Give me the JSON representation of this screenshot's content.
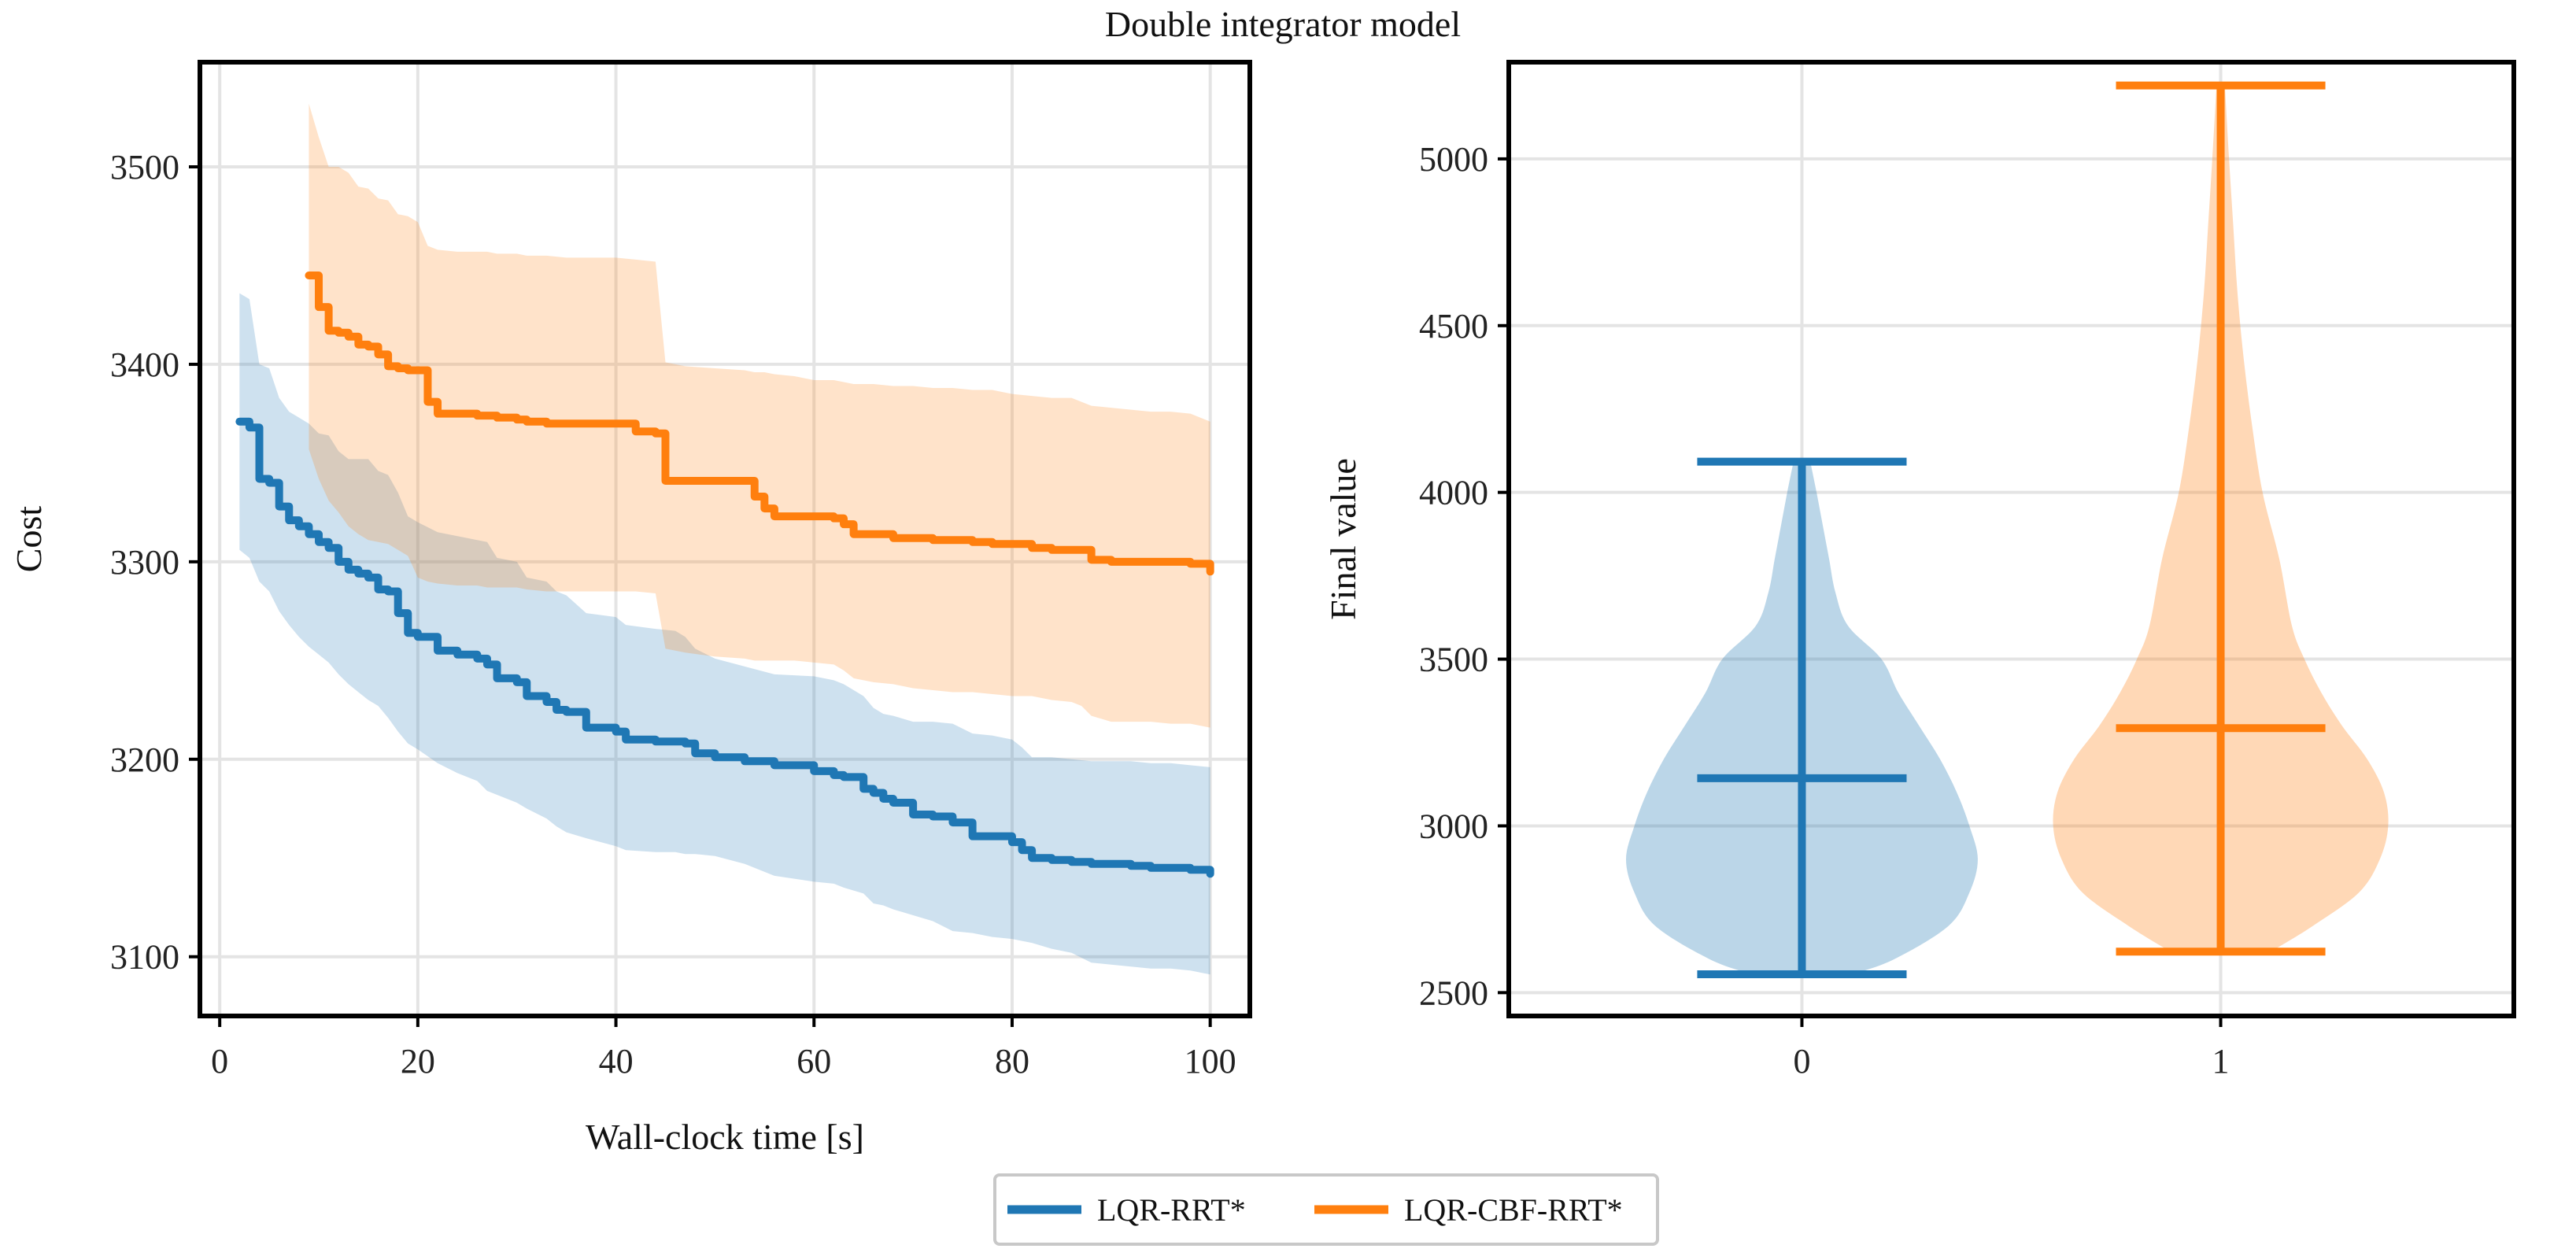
{
  "figure_title": "Double integrator model",
  "colors": {
    "blue": "#1f77b4",
    "orange": "#ff7f0e"
  },
  "legend": {
    "items": [
      {
        "label": "LQR-RRT*",
        "color": "#1f77b4"
      },
      {
        "label": "LQR-CBF-RRT*",
        "color": "#ff7f0e"
      }
    ]
  },
  "chart_data": [
    {
      "type": "line",
      "title": "",
      "xlabel": "Wall-clock time [s]",
      "ylabel": "Cost",
      "xlim": [
        -2,
        104
      ],
      "ylim": [
        3070,
        3553
      ],
      "xticks": [
        0,
        20,
        40,
        60,
        80,
        100
      ],
      "yticks": [
        3100,
        3200,
        3300,
        3400,
        3500
      ],
      "grid": true,
      "legend_position": "bottom-center (figure)",
      "series": [
        {
          "name": "LQR-RRT*",
          "color": "#1f77b4",
          "x": [
            2,
            3,
            4,
            5,
            6,
            7,
            8,
            9,
            10,
            11,
            12,
            13,
            14,
            15,
            16,
            17,
            18,
            19,
            20,
            22,
            24,
            26,
            27,
            28,
            30,
            31,
            33,
            34,
            35,
            37,
            40,
            41,
            44,
            46,
            47,
            48,
            50,
            53,
            56,
            60,
            62,
            63,
            65,
            66,
            67,
            68,
            70,
            72,
            74,
            76,
            78,
            80,
            81,
            82,
            84,
            86,
            88,
            90,
            92,
            94,
            96,
            98,
            100
          ],
          "values": [
            3371,
            3368,
            3342,
            3340,
            3328,
            3321,
            3318,
            3314,
            3310,
            3307,
            3300,
            3296,
            3294,
            3292,
            3286,
            3285,
            3274,
            3264,
            3262,
            3255,
            3253,
            3251,
            3248,
            3241,
            3239,
            3232,
            3229,
            3225,
            3224,
            3216,
            3214,
            3210,
            3209,
            3209,
            3208,
            3203,
            3201,
            3199,
            3197,
            3194,
            3192,
            3191,
            3185,
            3183,
            3180,
            3178,
            3172,
            3171,
            3168,
            3161,
            3161,
            3158,
            3154,
            3150,
            3149,
            3148,
            3147,
            3147,
            3146,
            3145,
            3145,
            3144,
            3142
          ],
          "band_lower": [
            3306,
            3302,
            3290,
            3285,
            3275,
            3268,
            3262,
            3257,
            3253,
            3249,
            3243,
            3238,
            3234,
            3230,
            3227,
            3221,
            3214,
            3208,
            3205,
            3198,
            3193,
            3189,
            3184,
            3182,
            3178,
            3175,
            3170,
            3166,
            3163,
            3160,
            3156,
            3154,
            3153,
            3153,
            3152,
            3152,
            3151,
            3147,
            3141,
            3138,
            3137,
            3135,
            3132,
            3127,
            3126,
            3124,
            3121,
            3118,
            3113,
            3112,
            3110,
            3109,
            3108,
            3107,
            3104,
            3102,
            3097,
            3096,
            3095,
            3094,
            3094,
            3093,
            3091
          ],
          "band_upper": [
            3436,
            3433,
            3400,
            3398,
            3383,
            3376,
            3373,
            3370,
            3365,
            3364,
            3356,
            3352,
            3352,
            3352,
            3346,
            3344,
            3335,
            3323,
            3320,
            3315,
            3313,
            3311,
            3310,
            3302,
            3300,
            3292,
            3290,
            3285,
            3283,
            3274,
            3272,
            3268,
            3266,
            3265,
            3262,
            3256,
            3251,
            3247,
            3243,
            3242,
            3240,
            3238,
            3232,
            3226,
            3223,
            3222,
            3219,
            3219,
            3218,
            3213,
            3212,
            3210,
            3206,
            3201,
            3201,
            3200,
            3199,
            3199,
            3199,
            3198,
            3198,
            3197,
            3196
          ]
        },
        {
          "name": "LQR-CBF-RRT*",
          "color": "#ff7f0e",
          "x": [
            9,
            10,
            11,
            12,
            13,
            14,
            15,
            16,
            17,
            18,
            19,
            20,
            21,
            22,
            24,
            26,
            27,
            28,
            30,
            31,
            33,
            35,
            40,
            42,
            44,
            45,
            47,
            50,
            53,
            54,
            55,
            56,
            58,
            60,
            62,
            63,
            64,
            66,
            68,
            70,
            72,
            74,
            76,
            78,
            80,
            82,
            84,
            86,
            87,
            88,
            90,
            92,
            94,
            96,
            98,
            100
          ],
          "values": [
            3445,
            3429,
            3417,
            3416,
            3414,
            3410,
            3409,
            3405,
            3399,
            3398,
            3397,
            3397,
            3381,
            3375,
            3375,
            3374,
            3374,
            3373,
            3372,
            3371,
            3370,
            3370,
            3370,
            3366,
            3365,
            3341,
            3341,
            3341,
            3341,
            3333,
            3327,
            3323,
            3323,
            3323,
            3322,
            3319,
            3314,
            3314,
            3312,
            3312,
            3311,
            3311,
            3310,
            3309,
            3309,
            3307,
            3306,
            3306,
            3306,
            3301,
            3300,
            3300,
            3300,
            3300,
            3299,
            3295
          ],
          "band_lower": [
            3357,
            3342,
            3331,
            3325,
            3318,
            3314,
            3311,
            3310,
            3309,
            3306,
            3303,
            3292,
            3290,
            3289,
            3288,
            3288,
            3287,
            3287,
            3287,
            3286,
            3285,
            3285,
            3285,
            3285,
            3284,
            3256,
            3254,
            3252,
            3251,
            3250,
            3250,
            3250,
            3250,
            3249,
            3248,
            3245,
            3241,
            3239,
            3238,
            3236,
            3235,
            3234,
            3234,
            3233,
            3232,
            3232,
            3230,
            3229,
            3227,
            3222,
            3219,
            3219,
            3219,
            3218,
            3218,
            3216
          ],
          "band_upper": [
            3532,
            3515,
            3500,
            3500,
            3497,
            3490,
            3489,
            3484,
            3483,
            3476,
            3475,
            3472,
            3460,
            3458,
            3457,
            3457,
            3457,
            3456,
            3456,
            3455,
            3455,
            3454,
            3454,
            3453,
            3452,
            3401,
            3399,
            3398,
            3397,
            3396,
            3396,
            3395,
            3394,
            3392,
            3392,
            3391,
            3390,
            3390,
            3389,
            3389,
            3388,
            3388,
            3387,
            3387,
            3385,
            3384,
            3383,
            3383,
            3381,
            3379,
            3378,
            3377,
            3376,
            3376,
            3375,
            3371
          ]
        }
      ]
    },
    {
      "type": "violin",
      "title": "",
      "xlabel": "",
      "ylabel": "Final value",
      "xlim": [
        -0.7,
        1.7
      ],
      "ylim": [
        2430,
        5290
      ],
      "xticks": [
        0,
        1
      ],
      "yticks": [
        2500,
        3000,
        3500,
        4000,
        4500,
        5000
      ],
      "grid": true,
      "series": [
        {
          "name": "LQR-RRT*",
          "position": 0,
          "color": "#1f77b4",
          "min": 2555,
          "median": 3143,
          "max": 4092,
          "density_y": [
            2555,
            2600,
            2700,
            2800,
            2900,
            3000,
            3100,
            3200,
            3300,
            3400,
            3500,
            3600,
            3700,
            3800,
            3900,
            4000,
            4092
          ],
          "density_halfwidth": [
            0.12,
            0.22,
            0.35,
            0.4,
            0.42,
            0.4,
            0.37,
            0.33,
            0.28,
            0.23,
            0.19,
            0.11,
            0.08,
            0.065,
            0.05,
            0.035,
            0.02
          ]
        },
        {
          "name": "LQR-CBF-RRT*",
          "position": 1,
          "color": "#ff7f0e",
          "min": 2623,
          "median": 3293,
          "max": 5220,
          "density_y": [
            2623,
            2700,
            2800,
            2900,
            3000,
            3100,
            3200,
            3300,
            3400,
            3500,
            3600,
            3800,
            4000,
            4200,
            4400,
            4600,
            4800,
            5000,
            5220
          ],
          "density_halfwidth": [
            0.12,
            0.22,
            0.33,
            0.38,
            0.4,
            0.39,
            0.35,
            0.29,
            0.24,
            0.2,
            0.17,
            0.14,
            0.1,
            0.075,
            0.055,
            0.04,
            0.03,
            0.02,
            0.01
          ]
        }
      ]
    }
  ]
}
